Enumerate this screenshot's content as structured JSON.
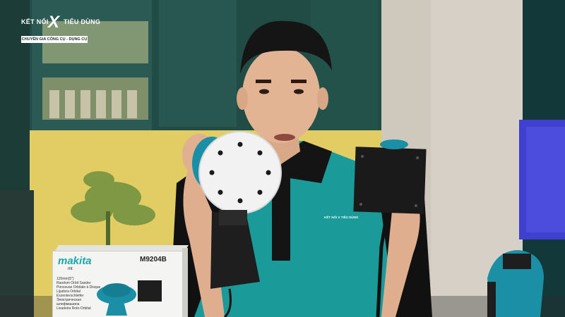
{
  "video": {
    "channel_logo": {
      "line1_left": "KẾT NỐI",
      "mark": "X",
      "line1_right": "TIÊU DÙNG",
      "tagline": "CHUYÊN GIA CÔNG CỤ - DỤNG CỤ"
    },
    "product_box": {
      "brand": "makita",
      "brand_sub": "mt",
      "model": "M9204B",
      "spec_lines": [
        "120mm(5\")",
        "Random Orbit Sander",
        "Ponceuse Orbitale à Disque",
        "Lijadora Orbital",
        "Exzenterschleifer",
        "Электрическая",
        "шлифмашина",
        "Lixadeira Roto-Orbital"
      ]
    },
    "shirt_logo_text": "KẾT NỐI X TIÊU DÙNG"
  },
  "colors": {
    "teal": "#1aa7a9",
    "shirt": "#1b9a9a",
    "wall": "#d8d2c6",
    "cabinet": "#1f4a44"
  }
}
